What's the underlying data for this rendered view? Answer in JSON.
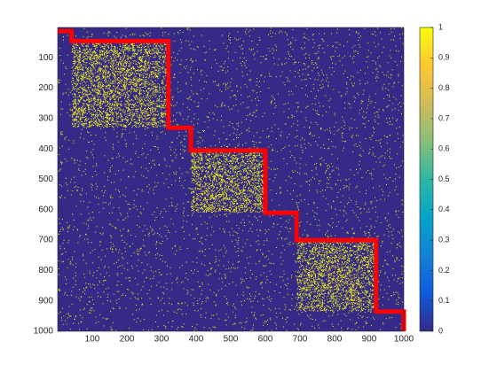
{
  "chart_data": {
    "type": "matrix",
    "xlim": [
      0,
      1000
    ],
    "ylim": [
      0,
      1000
    ],
    "y_reversed": true,
    "xticks": [
      100,
      200,
      300,
      400,
      500,
      600,
      700,
      800,
      900,
      1000
    ],
    "yticks": [
      100,
      200,
      300,
      400,
      500,
      600,
      700,
      800,
      900,
      1000
    ],
    "background_color": "#352a87",
    "dot_color": "#f9fb0e",
    "series": [
      {
        "color": "#ff0000",
        "x": [
          0,
          40,
          40,
          320,
          320,
          385,
          385,
          600,
          600,
          690,
          690,
          920,
          920,
          1000,
          1000
        ],
        "values": [
          12,
          12,
          45,
          45,
          330,
          330,
          405,
          405,
          610,
          610,
          700,
          700,
          935,
          935,
          1000
        ]
      }
    ],
    "colorbar": {
      "lim": [
        0,
        1
      ],
      "ticks": [
        0,
        0.1,
        0.2,
        0.3,
        0.4,
        0.5,
        0.6,
        0.7,
        0.8,
        0.9,
        1
      ],
      "colormap": [
        "#352a87",
        "#0f5cdd",
        "#1481d6",
        "#06a4ca",
        "#2eb7a4",
        "#87bf77",
        "#d1bb59",
        "#fec832",
        "#f9fb0e"
      ]
    }
  }
}
